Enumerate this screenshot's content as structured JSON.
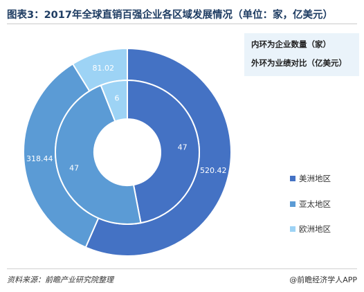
{
  "title": "图表3：2017年全球直销百强企业各区域发展情况（单位：家，亿美元）",
  "notes": {
    "inner": "内环为企业数量（家）",
    "outer": "外环为业绩对比（亿美元）"
  },
  "footer": {
    "source": "资料来源：前瞻产业研究院整理",
    "credit": "@前瞻经济学人APP"
  },
  "chart_data": {
    "type": "pie",
    "categories": [
      "美洲地区",
      "亚太地区",
      "欧洲地区"
    ],
    "colors": [
      "#4472c4",
      "#5b9bd5",
      "#9dd3f5"
    ],
    "series": [
      {
        "name": "内环为企业数量（家）",
        "ring": "inner",
        "values": [
          47,
          47,
          6
        ]
      },
      {
        "name": "外环为业绩对比（亿美元）",
        "ring": "outer",
        "values": [
          520.42,
          318.44,
          81.02
        ]
      }
    ],
    "legend": "right"
  }
}
